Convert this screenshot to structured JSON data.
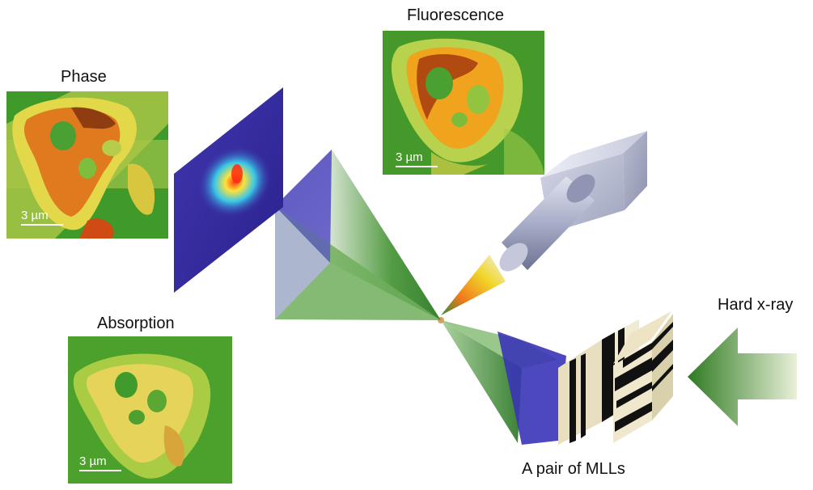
{
  "labels": {
    "phase": "Phase",
    "fluorescence": "Fluorescence",
    "absorption": "Absorption",
    "hard_xray": "Hard x-ray",
    "mlls": "A pair of MLLs"
  },
  "scale_bars": {
    "phase": "3 µm",
    "fluorescence": "3 µm",
    "absorption": "3 µm"
  },
  "colors": {
    "map_green": "#2f8f1f",
    "map_yellow": "#e8e04a",
    "map_orange": "#e0781e",
    "detector_blue": "#3a2fa0",
    "beam_green": "#3f8f35",
    "detector_gray": "#a9aec4"
  },
  "icons": {
    "phase_map": "phase-contrast-image",
    "fluorescence_map": "fluorescence-image",
    "absorption_map": "absorption-image",
    "pixel_detector": "diffraction-detector",
    "fluorescence_detector": "energy-dispersive-detector",
    "lens_pair": "multilayer-laue-lenses",
    "beam_arrow": "incident-beam-arrow"
  }
}
